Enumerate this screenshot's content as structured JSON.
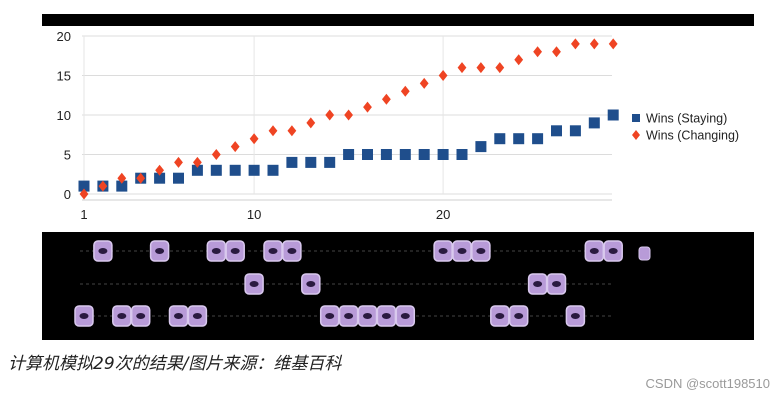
{
  "chart_data": {
    "type": "scatter",
    "x": [
      1,
      2,
      3,
      4,
      5,
      6,
      7,
      8,
      9,
      10,
      11,
      12,
      13,
      14,
      15,
      16,
      17,
      18,
      19,
      20,
      21,
      22,
      23,
      24,
      25,
      26,
      27,
      28,
      29
    ],
    "series": [
      {
        "name": "Wins (Staying)",
        "marker": "square",
        "color": "#1f4e8c",
        "values": [
          1,
          1,
          1,
          2,
          2,
          2,
          3,
          3,
          3,
          3,
          3,
          4,
          4,
          4,
          5,
          5,
          5,
          5,
          5,
          5,
          5,
          6,
          7,
          7,
          7,
          8,
          8,
          9,
          10
        ]
      },
      {
        "name": "Wins (Changing)",
        "marker": "diamond",
        "color": "#ef4423",
        "values": [
          0,
          1,
          2,
          2,
          3,
          4,
          4,
          5,
          6,
          7,
          8,
          8,
          9,
          10,
          10,
          11,
          12,
          13,
          14,
          15,
          16,
          16,
          16,
          17,
          18,
          18,
          19,
          19,
          19
        ]
      }
    ],
    "yticks": [
      0,
      5,
      10,
      15,
      20
    ],
    "xticks": [
      1,
      10,
      20
    ],
    "ylim": [
      0,
      20
    ],
    "xlim": [
      1,
      29
    ],
    "grid": true,
    "legend": "right"
  },
  "strip": {
    "rows": [
      [
        2,
        5,
        8,
        9,
        11,
        12,
        20,
        21,
        22,
        28,
        29
      ],
      [
        10,
        13,
        25,
        26
      ],
      [
        1,
        3,
        4,
        6,
        7,
        14,
        15,
        16,
        17,
        18,
        23,
        24,
        27
      ]
    ]
  },
  "caption": "计算机模拟29次的结果/图片来源：维基百科",
  "watermark": "CSDN @scott198510"
}
